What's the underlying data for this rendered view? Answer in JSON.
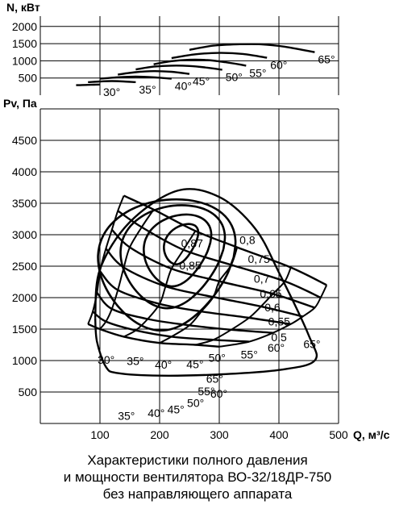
{
  "caption": [
    "Характеристики полного давления",
    "и мощности вентилятора ВО-32/18ДР-750",
    "без направляющего аппарата"
  ],
  "chart_data": [
    {
      "id": "power",
      "type": "line",
      "ylabel": "N, кВт",
      "xlim": [
        0,
        500
      ],
      "ylim": [
        0,
        2300
      ],
      "yticks": [
        500,
        1000,
        1500,
        2000
      ],
      "series": [
        {
          "name": "30°",
          "x": [
            60,
            70,
            80,
            90,
            100
          ],
          "y": [
            290,
            295,
            300,
            305,
            310
          ]
        },
        {
          "name": "35°",
          "x": [
            80,
            100,
            120,
            140,
            160
          ],
          "y": [
            380,
            400,
            410,
            400,
            380
          ]
        },
        {
          "name": "40°",
          "x": [
            100,
            130,
            160,
            190,
            220
          ],
          "y": [
            480,
            520,
            540,
            520,
            480
          ]
        },
        {
          "name": "45°",
          "x": [
            130,
            160,
            190,
            220,
            250
          ],
          "y": [
            600,
            670,
            700,
            680,
            620
          ]
        },
        {
          "name": "50°",
          "x": [
            160,
            190,
            220,
            250,
            280,
            305
          ],
          "y": [
            750,
            830,
            860,
            850,
            800,
            740
          ]
        },
        {
          "name": "55°",
          "x": [
            190,
            220,
            250,
            280,
            310,
            345
          ],
          "y": [
            900,
            990,
            1030,
            1020,
            960,
            860
          ]
        },
        {
          "name": "60°",
          "x": [
            220,
            260,
            300,
            340,
            380
          ],
          "y": [
            1080,
            1190,
            1230,
            1200,
            1090
          ]
        },
        {
          "name": "65°",
          "x": [
            250,
            290,
            330,
            370,
            410,
            460
          ],
          "y": [
            1320,
            1440,
            1480,
            1480,
            1410,
            1250
          ]
        }
      ]
    },
    {
      "id": "pressure",
      "type": "line",
      "xlabel": "Q, м³/с",
      "ylabel": "Pv, Па",
      "xlim": [
        0,
        500
      ],
      "ylim": [
        0,
        5000
      ],
      "xticks": [
        100,
        200,
        300,
        400,
        500
      ],
      "yticks": [
        500,
        1000,
        1500,
        2000,
        2500,
        3000,
        3500,
        4000,
        4500
      ],
      "efficiency_labels": [
        {
          "text": "0,87",
          "x": 236,
          "y": 2800
        },
        {
          "text": "0,85",
          "x": 233,
          "y": 2450
        },
        {
          "text": "0,8",
          "x": 334,
          "y": 2850
        },
        {
          "text": "0,75",
          "x": 348,
          "y": 2550
        },
        {
          "text": "0,7",
          "x": 358,
          "y": 2240
        },
        {
          "text": "0,65",
          "x": 368,
          "y": 2000
        },
        {
          "text": "0,6",
          "x": 376,
          "y": 1780
        },
        {
          "text": "0,55",
          "x": 382,
          "y": 1560
        },
        {
          "text": "0,5",
          "x": 387,
          "y": 1310
        }
      ],
      "angle_labels": [
        {
          "text": "30°",
          "x": 96,
          "y": 950
        },
        {
          "text": "35°",
          "x": 145,
          "y": 930
        },
        {
          "text": "40°",
          "x": 192,
          "y": 870
        },
        {
          "text": "45°",
          "x": 245,
          "y": 880
        },
        {
          "text": "50°",
          "x": 282,
          "y": 980
        },
        {
          "text": "55°",
          "x": 336,
          "y": 1030
        },
        {
          "text": "60°",
          "x": 381,
          "y": 1140
        },
        {
          "text": "65°",
          "x": 441,
          "y": 1200
        },
        {
          "text": "35°",
          "x": 130,
          "y": 60
        },
        {
          "text": "40°",
          "x": 180,
          "y": 100
        },
        {
          "text": "45°",
          "x": 213,
          "y": 160
        },
        {
          "text": "50°",
          "x": 246,
          "y": 265
        },
        {
          "text": "55°",
          "x": 264,
          "y": 450
        },
        {
          "text": "60°",
          "x": 285,
          "y": 410
        },
        {
          "text": "65°",
          "x": 278,
          "y": 650
        }
      ],
      "blade_curves": [
        {
          "name": "30°",
          "x": [
            80,
            100,
            140,
            200,
            260,
            300
          ],
          "y": [
            1580,
            1500,
            1380,
            1280,
            1250,
            1220
          ]
        },
        {
          "name": "35°",
          "x": [
            88,
            110,
            160,
            220,
            290,
            350
          ],
          "y": [
            1780,
            1620,
            1480,
            1380,
            1330,
            1300
          ]
        },
        {
          "name": "40°",
          "x": [
            95,
            120,
            180,
            250,
            320,
            390
          ],
          "y": [
            2080,
            1820,
            1660,
            1560,
            1490,
            1440
          ]
        },
        {
          "name": "45°",
          "x": [
            100,
            130,
            200,
            270,
            350,
            420
          ],
          "y": [
            2420,
            2120,
            1900,
            1780,
            1680,
            1580
          ]
        },
        {
          "name": "50°",
          "x": [
            110,
            140,
            210,
            290,
            370,
            440
          ],
          "y": [
            2780,
            2480,
            2180,
            2010,
            1860,
            1700
          ]
        },
        {
          "name": "55°",
          "x": [
            120,
            150,
            220,
            300,
            390,
            460
          ],
          "y": [
            3080,
            2800,
            2460,
            2260,
            2060,
            1840
          ]
        },
        {
          "name": "60°",
          "x": [
            130,
            170,
            240,
            320,
            410,
            470
          ],
          "y": [
            3380,
            3120,
            2760,
            2520,
            2260,
            2000
          ]
        },
        {
          "name": "65°",
          "x": [
            140,
            190,
            260,
            330,
            420,
            480
          ],
          "y": [
            3620,
            3400,
            3060,
            2800,
            2480,
            2200
          ]
        }
      ]
    }
  ]
}
